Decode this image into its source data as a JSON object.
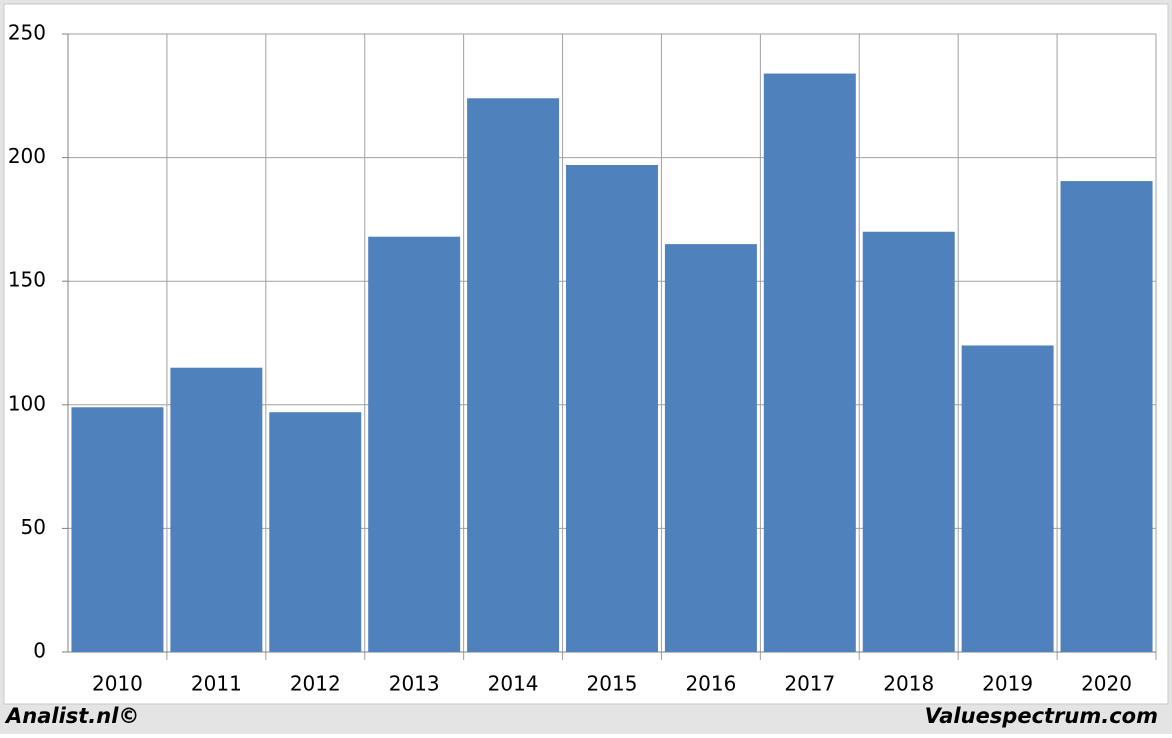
{
  "chart_data": {
    "type": "bar",
    "categories": [
      "2010",
      "2011",
      "2012",
      "2013",
      "2014",
      "2015",
      "2016",
      "2017",
      "2018",
      "2019",
      "2020"
    ],
    "values": [
      99,
      115,
      97,
      168,
      224,
      197,
      165,
      234,
      170,
      124,
      190.5
    ],
    "color": "#4f81bd",
    "ylim": [
      0,
      250
    ],
    "yticks": [
      0,
      50,
      100,
      150,
      200,
      250
    ],
    "grid": true,
    "footer_left": "Analist.nl©",
    "footer_right": "Valuespectrum.com"
  }
}
